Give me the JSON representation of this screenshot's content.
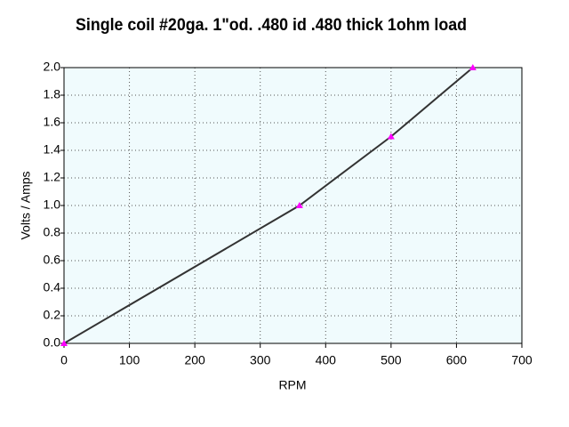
{
  "chart_data": {
    "type": "line",
    "title": "Single coil #20ga. 1\"od. .480 id  .480 thick 1ohm load",
    "x_label": "RPM",
    "y_label": "Volts / Amps",
    "x": [
      0,
      360,
      500,
      625
    ],
    "values": [
      0,
      1.0,
      1.5,
      2.0
    ],
    "color": "#333333",
    "marker_color": "#ff00ff",
    "xlim": [
      0,
      700
    ],
    "xticks": [
      0,
      100,
      200,
      300,
      400,
      500,
      600,
      700
    ],
    "ylim": [
      0,
      2.0
    ],
    "yticks": [
      {
        "value": 0,
        "label": "0.0"
      },
      {
        "value": 0.2,
        "label": "0.2"
      },
      {
        "value": 0.4,
        "label": "0.4"
      },
      {
        "value": 0.6,
        "label": "0.6"
      },
      {
        "value": 0.8,
        "label": "0.8"
      },
      {
        "value": 1.0,
        "label": "1.0"
      },
      {
        "value": 1.2,
        "label": "1.2"
      },
      {
        "value": 1.4,
        "label": "1.4"
      },
      {
        "value": 1.6,
        "label": "1.6"
      },
      {
        "value": 1.8,
        "label": "1.8"
      },
      {
        "value": 2.0,
        "label": "2.0"
      }
    ],
    "grid": true
  }
}
